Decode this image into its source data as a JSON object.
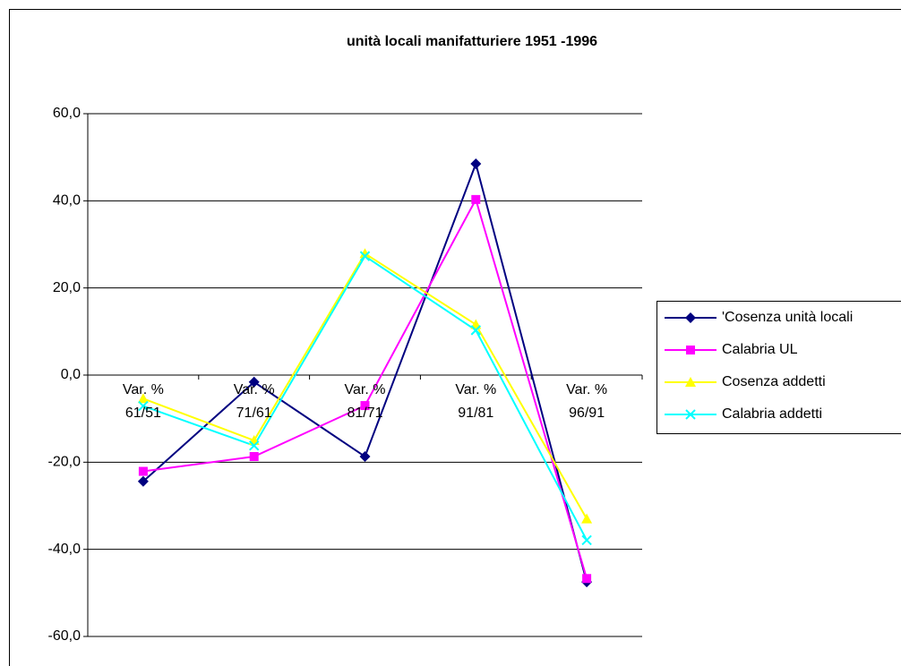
{
  "chart_data": {
    "type": "line",
    "title": "unità locali manifatturiere 1951 -1996",
    "categories": [
      "Var. % 61/51",
      "Var. % 71/61",
      "Var. % 81/71",
      "Var. % 91/81",
      "Var. % 96/91"
    ],
    "series": [
      {
        "name": "'Cosenza unità locali",
        "color": "#000080",
        "marker": "diamond",
        "values": [
          -24.4,
          -1.6,
          -18.7,
          48.5,
          -47.5
        ]
      },
      {
        "name": "Calabria UL",
        "color": "#ff00ff",
        "marker": "square",
        "values": [
          -22.1,
          -18.7,
          -7.0,
          40.3,
          -46.7
        ]
      },
      {
        "name": "Cosenza addetti",
        "color": "#ffff00",
        "marker": "triangle",
        "values": [
          -5.4,
          -15.0,
          27.9,
          11.6,
          -33.0
        ]
      },
      {
        "name": "Calabria addetti",
        "color": "#00ffff",
        "marker": "x",
        "values": [
          -7.1,
          -16.2,
          27.3,
          10.3,
          -37.9
        ]
      }
    ],
    "ylim": [
      -60,
      60
    ],
    "yticks": [
      {
        "value": -60,
        "label": "-60,0"
      },
      {
        "value": -40,
        "label": "-40,0"
      },
      {
        "value": -20,
        "label": "-20,0"
      },
      {
        "value": 0,
        "label": "0,0"
      },
      {
        "value": 20,
        "label": "20,0"
      },
      {
        "value": 40,
        "label": "40,0"
      },
      {
        "value": 60,
        "label": "60,0"
      }
    ],
    "grid": true,
    "legend": "right"
  }
}
